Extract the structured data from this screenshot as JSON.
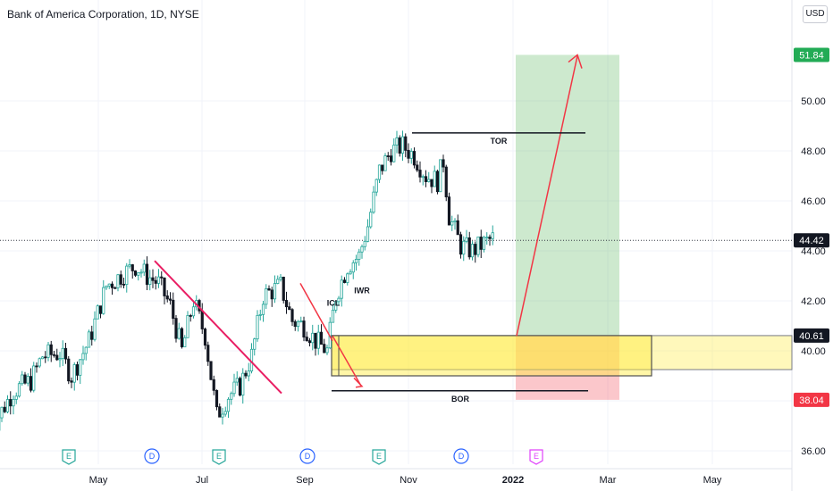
{
  "header": {
    "title": "Bank of America Corporation, 1D, NYSE",
    "currency": "USD"
  },
  "chart_data": {
    "type": "candlestick",
    "title": "Bank of America Corporation, 1D, NYSE",
    "currency": "USD",
    "y_ticks": [
      "36.00",
      "38.00",
      "40.00",
      "42.00",
      "44.00",
      "46.00",
      "48.00",
      "50.00"
    ],
    "x_ticks": [
      "May",
      "Jul",
      "Sep",
      "Nov",
      "2022",
      "Mar",
      "May"
    ],
    "price_labels": [
      {
        "label": "51.84",
        "value": 51.84,
        "color": "#22ab55"
      },
      {
        "label": "44.42",
        "value": 44.42,
        "color": "#131722"
      },
      {
        "label": "40.61",
        "value": 40.61,
        "color": "#131722"
      },
      {
        "label": "38.04",
        "value": 38.04,
        "color": "#f23645"
      }
    ],
    "annotations": [
      "TOR",
      "BOR",
      "ICL",
      "IWR"
    ],
    "event_markers": [
      "E",
      "D",
      "E",
      "D",
      "E",
      "D",
      "E"
    ],
    "up_color": "#26a69a",
    "down_color": "#131722"
  }
}
